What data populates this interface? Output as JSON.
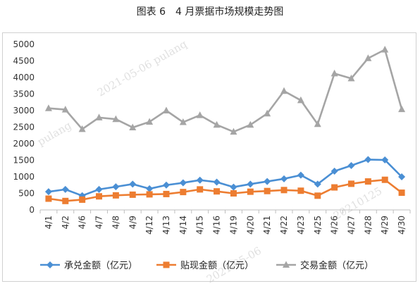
{
  "page": {
    "title": "图表 6　4 月票据市场规模走势图"
  },
  "watermarks": [
    "2021-05-06 pulanq",
    "pulang",
    "2021-05-06",
    "20210125"
  ],
  "chart_data": {
    "type": "line",
    "categories": [
      "4/1",
      "4/2",
      "4/6",
      "4/7",
      "4/8",
      "4/9",
      "4/12",
      "4/13",
      "4/14",
      "4/15",
      "4/16",
      "4/19",
      "4/20",
      "4/21",
      "4/22",
      "4/23",
      "4/25",
      "4/26",
      "4/27",
      "4/28",
      "4/29",
      "4/30"
    ],
    "ylim": [
      0,
      5000
    ],
    "yticks": [
      0,
      500,
      1000,
      1500,
      2000,
      2500,
      3000,
      3500,
      4000,
      4500,
      5000
    ],
    "grid": false,
    "legend_position": "bottom",
    "series": [
      {
        "name": "承兑金额（亿元）",
        "color": "#4a8fd4",
        "marker": "diamond",
        "values": [
          550,
          620,
          430,
          620,
          700,
          780,
          640,
          750,
          820,
          900,
          840,
          690,
          780,
          860,
          940,
          1050,
          780,
          1170,
          1340,
          1520,
          1510,
          1000
        ]
      },
      {
        "name": "贴现金额（亿元）",
        "color": "#ed7d31",
        "marker": "square",
        "values": [
          340,
          270,
          310,
          410,
          440,
          460,
          470,
          480,
          540,
          620,
          560,
          500,
          550,
          570,
          600,
          580,
          430,
          680,
          790,
          860,
          910,
          520
        ]
      },
      {
        "name": "交易金额（亿元）",
        "color": "#a5a5a5",
        "marker": "triangle",
        "values": [
          3070,
          3030,
          2440,
          2790,
          2740,
          2490,
          2660,
          3000,
          2650,
          2860,
          2570,
          2360,
          2570,
          2910,
          3590,
          3310,
          2590,
          4120,
          3970,
          4580,
          4840,
          3040
        ]
      }
    ]
  }
}
